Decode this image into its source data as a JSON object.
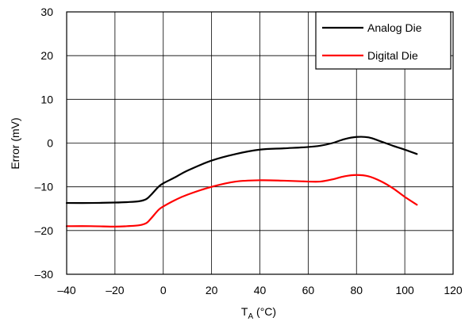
{
  "chart_data": {
    "type": "line",
    "title": "",
    "xlabel": "T",
    "xlabel_subscript": "A",
    "xlabel_suffix": " (°C)",
    "ylabel": "Error (mV)",
    "xlim": [
      -40,
      120
    ],
    "ylim": [
      -30,
      30
    ],
    "xticks": [
      -40,
      -20,
      0,
      20,
      40,
      60,
      80,
      100,
      120
    ],
    "yticks": [
      -30,
      -20,
      -10,
      0,
      10,
      20,
      30
    ],
    "xtick_labels": [
      "–40",
      "–20",
      "0",
      "20",
      "40",
      "60",
      "80",
      "100",
      "120"
    ],
    "ytick_labels": [
      "–30",
      "–20",
      "–10",
      "0",
      "10",
      "20",
      "30"
    ],
    "grid": true,
    "legend_position": "top-right",
    "series": [
      {
        "name": "Analog Die",
        "color": "#000000",
        "x": [
          -40,
          -30,
          -20,
          -15,
          -10,
          -7,
          -5,
          -2,
          0,
          5,
          10,
          20,
          30,
          40,
          50,
          60,
          65,
          70,
          75,
          80,
          85,
          90,
          95,
          100,
          105
        ],
        "y": [
          -13.7,
          -13.7,
          -13.6,
          -13.5,
          -13.3,
          -12.8,
          -11.8,
          -10,
          -9.2,
          -7.8,
          -6.3,
          -4,
          -2.5,
          -1.5,
          -1.2,
          -0.9,
          -0.6,
          0,
          0.9,
          1.4,
          1.3,
          0.4,
          -0.6,
          -1.5,
          -2.5
        ]
      },
      {
        "name": "Digital Die",
        "color": "#ff0000",
        "x": [
          -40,
          -30,
          -20,
          -15,
          -10,
          -7,
          -5,
          -2,
          0,
          5,
          10,
          20,
          30,
          40,
          50,
          60,
          65,
          70,
          75,
          80,
          85,
          90,
          95,
          100,
          105
        ],
        "y": [
          -19,
          -19,
          -19.1,
          -19,
          -18.8,
          -18.3,
          -17.2,
          -15.3,
          -14.5,
          -13,
          -11.8,
          -10,
          -8.8,
          -8.5,
          -8.6,
          -8.8,
          -8.8,
          -8.3,
          -7.6,
          -7.3,
          -7.6,
          -8.7,
          -10.3,
          -12.3,
          -14.1
        ]
      }
    ]
  }
}
